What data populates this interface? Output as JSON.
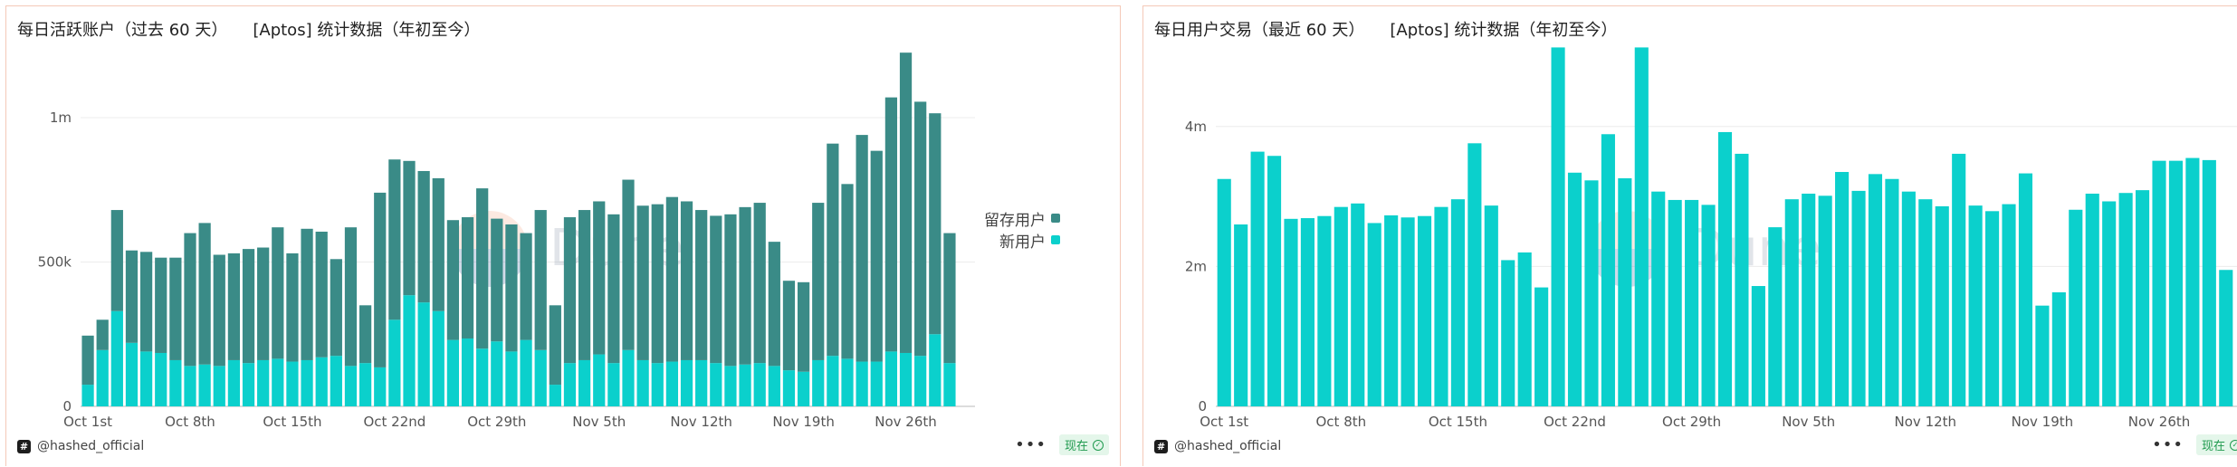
{
  "panels": [
    {
      "title": "每日活跃账户（过去 60 天）",
      "subtitle": "[Aptos] 统计数据（年初至今）",
      "author": "@hashed_official",
      "status": "现在",
      "watermark": "Dune"
    },
    {
      "title": "每日用户交易（最近 60 天）",
      "subtitle": "[Aptos] 统计数据（年初至今）",
      "author": "@hashed_official",
      "status": "现在",
      "watermark": "Dune"
    }
  ],
  "chart_data": [
    {
      "type": "bar",
      "stacked": true,
      "x_ticks": [
        "Oct 1st",
        "Oct 8th",
        "Oct 15th",
        "Oct 22nd",
        "Oct 29th",
        "Nov 5th",
        "Nov 12th",
        "Nov 19th",
        "Nov 26th"
      ],
      "y_ticks": [
        0,
        500000,
        1000000
      ],
      "y_tick_labels": [
        "0",
        "500k",
        "1m"
      ],
      "ylim": [
        0,
        1260000
      ],
      "legend": "right",
      "series": [
        {
          "name": "新用户",
          "color": "#0bd0cc",
          "values": [
            75000,
            195000,
            330000,
            220000,
            190000,
            185000,
            160000,
            140000,
            145000,
            140000,
            160000,
            150000,
            160000,
            165000,
            155000,
            160000,
            170000,
            175000,
            140000,
            150000,
            135000,
            300000,
            385000,
            360000,
            330000,
            230000,
            235000,
            200000,
            225000,
            190000,
            230000,
            195000,
            75000,
            150000,
            160000,
            180000,
            150000,
            195000,
            160000,
            150000,
            155000,
            160000,
            160000,
            150000,
            140000,
            145000,
            150000,
            140000,
            125000,
            120000,
            160000,
            175000,
            165000,
            155000,
            155000,
            190000,
            185000,
            175000,
            250000,
            150000
          ]
        },
        {
          "name": "留存用户",
          "color": "#3a8b87",
          "values": [
            170000,
            105000,
            350000,
            320000,
            345000,
            330000,
            355000,
            460000,
            490000,
            385000,
            370000,
            395000,
            390000,
            455000,
            375000,
            455000,
            435000,
            335000,
            480000,
            200000,
            605000,
            555000,
            465000,
            455000,
            460000,
            415000,
            420000,
            555000,
            425000,
            440000,
            370000,
            485000,
            275000,
            505000,
            520000,
            530000,
            515000,
            590000,
            535000,
            550000,
            570000,
            550000,
            520000,
            510000,
            525000,
            545000,
            555000,
            430000,
            310000,
            310000,
            545000,
            735000,
            605000,
            785000,
            730000,
            880000,
            1040000,
            880000,
            765000,
            450000
          ]
        }
      ]
    },
    {
      "type": "bar",
      "x_ticks": [
        "Oct 1st",
        "Oct 8th",
        "Oct 15th",
        "Oct 22nd",
        "Oct 29th",
        "Nov 5th",
        "Nov 12th",
        "Nov 19th",
        "Nov 26th"
      ],
      "y_ticks": [
        0,
        2000000,
        4000000
      ],
      "y_tick_labels": [
        "0",
        "2m",
        "4m"
      ],
      "ylim": [
        0,
        5200000
      ],
      "legend": "none",
      "series": [
        {
          "color": "#0bd0cc",
          "values": [
            3250000,
            2600000,
            3640000,
            3580000,
            2680000,
            2690000,
            2720000,
            2850000,
            2900000,
            2620000,
            2730000,
            2700000,
            2720000,
            2850000,
            2960000,
            3760000,
            2870000,
            2090000,
            2200000,
            1700000,
            5130000,
            3340000,
            3230000,
            3890000,
            3260000,
            5130000,
            3070000,
            2950000,
            2950000,
            2880000,
            3920000,
            3610000,
            1720000,
            2560000,
            2960000,
            3040000,
            3010000,
            3350000,
            3080000,
            3320000,
            3250000,
            3070000,
            2960000,
            2860000,
            3610000,
            2870000,
            2790000,
            2890000,
            3330000,
            1440000,
            1630000,
            2810000,
            3040000,
            2930000,
            3050000,
            3090000,
            3510000,
            3510000,
            3550000,
            3520000,
            1950000
          ]
        }
      ]
    }
  ]
}
